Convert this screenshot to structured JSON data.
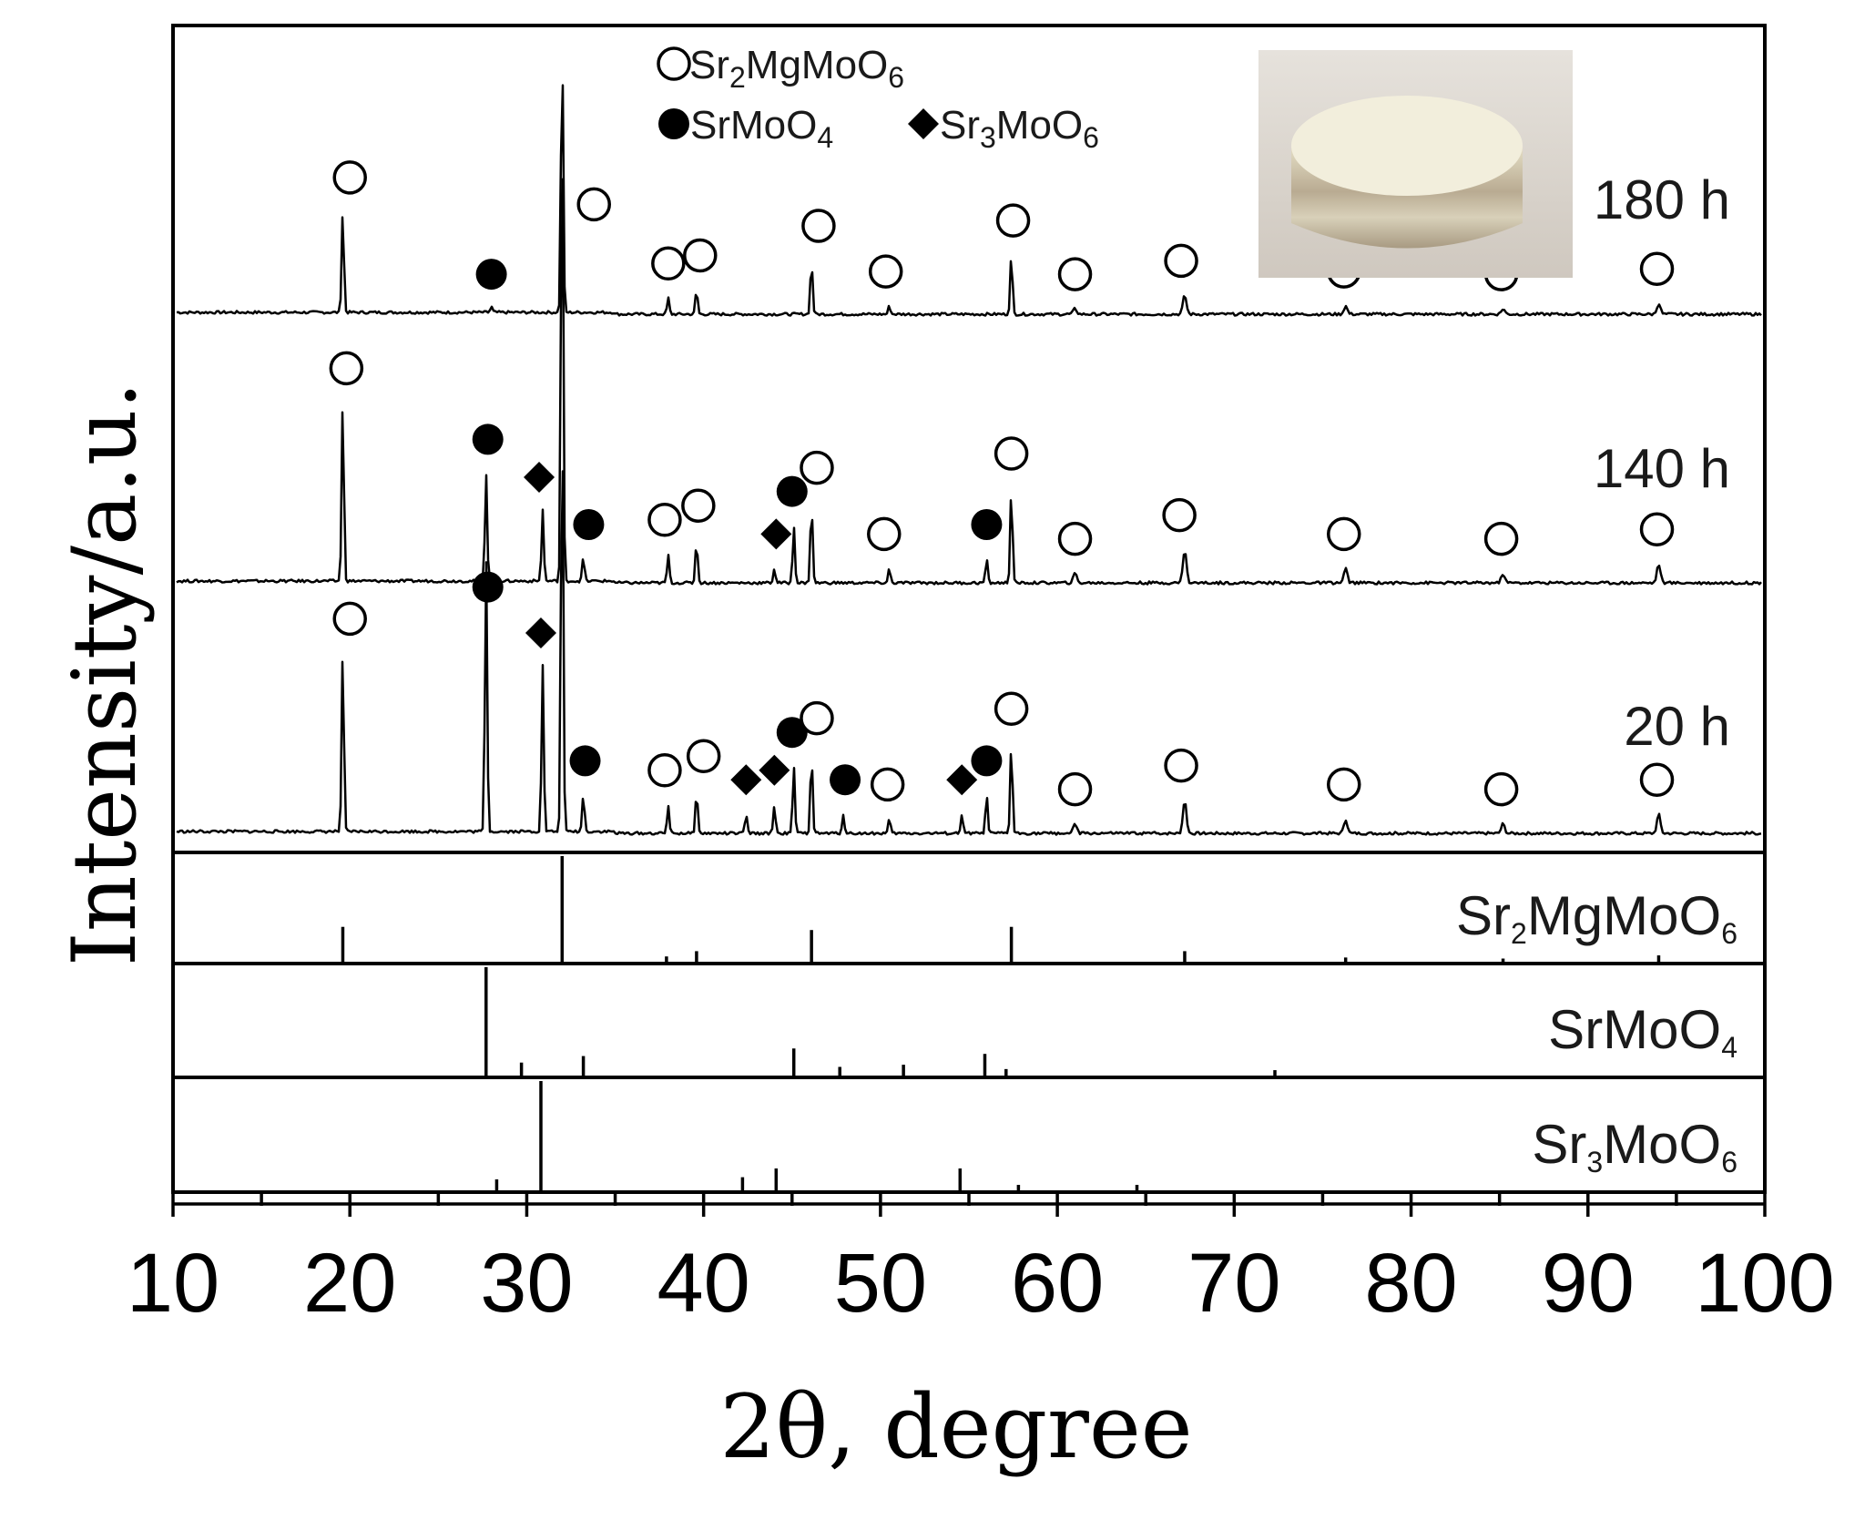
{
  "chart_data": {
    "type": "line",
    "xlabel": "2θ, degree",
    "ylabel": "Intensity/a.u.",
    "xlim": [
      10,
      100
    ],
    "xticks": [
      10,
      20,
      30,
      40,
      50,
      60,
      70,
      80,
      90,
      100
    ],
    "legend": {
      "placement": "top-center",
      "entries": [
        {
          "marker": "open-circle",
          "label": "Sr2MgMoO6",
          "parts": [
            [
              "Sr",
              ""
            ],
            [
              "2",
              "sub"
            ],
            [
              "MgMoO",
              ""
            ],
            [
              "6",
              "sub"
            ]
          ]
        },
        {
          "marker": "filled-circle",
          "label": "SrMoO4",
          "parts": [
            [
              "SrMoO",
              ""
            ],
            [
              "4",
              "sub"
            ]
          ]
        },
        {
          "marker": "filled-diamond",
          "label": "Sr3MoO6",
          "parts": [
            [
              "Sr",
              ""
            ],
            [
              "3",
              "sub"
            ],
            [
              "MoO",
              ""
            ],
            [
              "6",
              "sub"
            ]
          ]
        }
      ]
    },
    "inset": {
      "content": "photograph of sintered pellet",
      "placement": "top-right"
    },
    "series": [
      {
        "name": "180 h",
        "peaks": [
          {
            "x": 19.6,
            "h": 0.38
          },
          {
            "x": 28.0,
            "h": 0.02
          },
          {
            "x": 32.0,
            "h": 1.0
          },
          {
            "x": 38.0,
            "h": 0.06
          },
          {
            "x": 39.6,
            "h": 0.09
          },
          {
            "x": 46.1,
            "h": 0.2
          },
          {
            "x": 50.5,
            "h": 0.03
          },
          {
            "x": 57.4,
            "h": 0.22
          },
          {
            "x": 61.0,
            "h": 0.02
          },
          {
            "x": 67.2,
            "h": 0.07
          },
          {
            "x": 76.3,
            "h": 0.03
          },
          {
            "x": 85.2,
            "h": 0.02
          },
          {
            "x": 94.0,
            "h": 0.04
          }
        ],
        "markers": [
          {
            "x": 20.0,
            "sym": "open"
          },
          {
            "x": 28.0,
            "sym": "filled"
          },
          {
            "x": 33.8,
            "sym": "open"
          },
          {
            "x": 38.0,
            "sym": "open"
          },
          {
            "x": 39.8,
            "sym": "open"
          },
          {
            "x": 46.5,
            "sym": "open"
          },
          {
            "x": 50.3,
            "sym": "open"
          },
          {
            "x": 57.5,
            "sym": "open"
          },
          {
            "x": 61.0,
            "sym": "open"
          },
          {
            "x": 67.0,
            "sym": "open"
          },
          {
            "x": 76.2,
            "sym": "open"
          },
          {
            "x": 85.1,
            "sym": "open"
          },
          {
            "x": 93.9,
            "sym": "open"
          }
        ]
      },
      {
        "name": "140 h",
        "peaks": [
          {
            "x": 19.6,
            "h": 0.38
          },
          {
            "x": 27.7,
            "h": 0.23
          },
          {
            "x": 30.9,
            "h": 0.15
          },
          {
            "x": 32.0,
            "h": 1.0
          },
          {
            "x": 33.2,
            "h": 0.05
          },
          {
            "x": 38.0,
            "h": 0.06
          },
          {
            "x": 39.6,
            "h": 0.09
          },
          {
            "x": 44.0,
            "h": 0.03
          },
          {
            "x": 45.1,
            "h": 0.12
          },
          {
            "x": 46.1,
            "h": 0.17
          },
          {
            "x": 50.5,
            "h": 0.03
          },
          {
            "x": 56.0,
            "h": 0.05
          },
          {
            "x": 57.4,
            "h": 0.2
          },
          {
            "x": 61.0,
            "h": 0.02
          },
          {
            "x": 67.2,
            "h": 0.07
          },
          {
            "x": 76.3,
            "h": 0.03
          },
          {
            "x": 85.2,
            "h": 0.02
          },
          {
            "x": 94.0,
            "h": 0.04
          }
        ],
        "markers": [
          {
            "x": 19.8,
            "sym": "open"
          },
          {
            "x": 27.8,
            "sym": "filled"
          },
          {
            "x": 30.7,
            "sym": "diamond"
          },
          {
            "x": 33.5,
            "sym": "filled"
          },
          {
            "x": 37.8,
            "sym": "open"
          },
          {
            "x": 39.7,
            "sym": "open"
          },
          {
            "x": 44.1,
            "sym": "diamond"
          },
          {
            "x": 45.0,
            "sym": "filled"
          },
          {
            "x": 46.4,
            "sym": "open"
          },
          {
            "x": 50.2,
            "sym": "open"
          },
          {
            "x": 56.0,
            "sym": "filled"
          },
          {
            "x": 57.4,
            "sym": "open"
          },
          {
            "x": 61.0,
            "sym": "open"
          },
          {
            "x": 66.9,
            "sym": "open"
          },
          {
            "x": 76.2,
            "sym": "open"
          },
          {
            "x": 85.1,
            "sym": "open"
          },
          {
            "x": 93.9,
            "sym": "open"
          }
        ]
      },
      {
        "name": "20 h",
        "peaks": [
          {
            "x": 19.6,
            "h": 0.38
          },
          {
            "x": 27.7,
            "h": 0.58
          },
          {
            "x": 30.9,
            "h": 0.35
          },
          {
            "x": 32.0,
            "h": 0.9
          },
          {
            "x": 33.2,
            "h": 0.08
          },
          {
            "x": 38.0,
            "h": 0.06
          },
          {
            "x": 39.6,
            "h": 0.09
          },
          {
            "x": 42.4,
            "h": 0.04
          },
          {
            "x": 44.0,
            "h": 0.06
          },
          {
            "x": 45.1,
            "h": 0.14
          },
          {
            "x": 46.1,
            "h": 0.17
          },
          {
            "x": 47.9,
            "h": 0.04
          },
          {
            "x": 50.5,
            "h": 0.03
          },
          {
            "x": 54.6,
            "h": 0.04
          },
          {
            "x": 56.0,
            "h": 0.08
          },
          {
            "x": 57.4,
            "h": 0.19
          },
          {
            "x": 61.0,
            "h": 0.02
          },
          {
            "x": 67.2,
            "h": 0.07
          },
          {
            "x": 76.3,
            "h": 0.03
          },
          {
            "x": 85.2,
            "h": 0.02
          },
          {
            "x": 94.0,
            "h": 0.04
          }
        ],
        "markers": [
          {
            "x": 20.0,
            "sym": "open"
          },
          {
            "x": 27.8,
            "sym": "filled"
          },
          {
            "x": 30.8,
            "sym": "diamond"
          },
          {
            "x": 33.3,
            "sym": "filled"
          },
          {
            "x": 37.8,
            "sym": "open"
          },
          {
            "x": 40.0,
            "sym": "open"
          },
          {
            "x": 42.4,
            "sym": "diamond"
          },
          {
            "x": 44.0,
            "sym": "diamond"
          },
          {
            "x": 45.0,
            "sym": "filled"
          },
          {
            "x": 46.4,
            "sym": "open"
          },
          {
            "x": 48.0,
            "sym": "filled"
          },
          {
            "x": 50.4,
            "sym": "open"
          },
          {
            "x": 54.6,
            "sym": "diamond"
          },
          {
            "x": 56.0,
            "sym": "filled"
          },
          {
            "x": 57.4,
            "sym": "open"
          },
          {
            "x": 61.0,
            "sym": "open"
          },
          {
            "x": 67.0,
            "sym": "open"
          },
          {
            "x": 76.2,
            "sym": "open"
          },
          {
            "x": 85.1,
            "sym": "open"
          },
          {
            "x": 93.9,
            "sym": "open"
          }
        ]
      }
    ],
    "references": [
      {
        "name": "Sr2MgMoO6",
        "parts": [
          [
            "Sr",
            ""
          ],
          [
            "2",
            "sub"
          ],
          [
            "MgMoO",
            ""
          ],
          [
            "6",
            "sub"
          ]
        ],
        "lines": [
          [
            19.6,
            0.33
          ],
          [
            32.0,
            1.0
          ],
          [
            37.9,
            0.05
          ],
          [
            39.6,
            0.1
          ],
          [
            46.1,
            0.3
          ],
          [
            57.4,
            0.33
          ],
          [
            67.2,
            0.1
          ],
          [
            76.3,
            0.04
          ],
          [
            85.2,
            0.03
          ],
          [
            94.0,
            0.06
          ]
        ]
      },
      {
        "name": "SrMoO4",
        "parts": [
          [
            "SrMoO",
            ""
          ],
          [
            "4",
            "sub"
          ]
        ],
        "lines": [
          [
            27.7,
            1.0
          ],
          [
            29.7,
            0.12
          ],
          [
            33.2,
            0.18
          ],
          [
            45.1,
            0.25
          ],
          [
            47.7,
            0.08
          ],
          [
            51.3,
            0.1
          ],
          [
            55.9,
            0.2
          ],
          [
            57.1,
            0.06
          ],
          [
            72.3,
            0.05
          ]
        ]
      },
      {
        "name": "Sr3MoO6",
        "parts": [
          [
            "Sr",
            ""
          ],
          [
            "3",
            "sub"
          ],
          [
            "MoO",
            ""
          ],
          [
            "6",
            "sub"
          ]
        ],
        "lines": [
          [
            28.3,
            0.1
          ],
          [
            30.8,
            1.0
          ],
          [
            42.2,
            0.12
          ],
          [
            44.1,
            0.2
          ],
          [
            54.5,
            0.2
          ],
          [
            57.8,
            0.05
          ],
          [
            64.5,
            0.05
          ]
        ]
      }
    ]
  }
}
